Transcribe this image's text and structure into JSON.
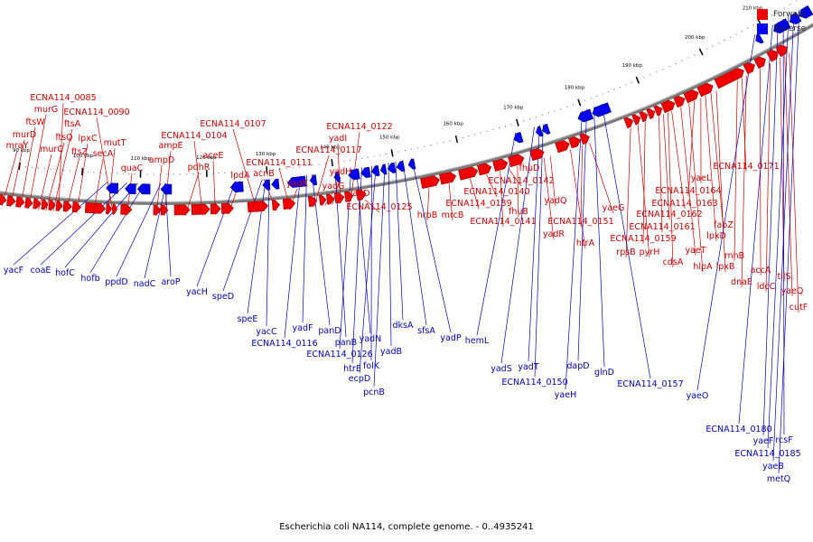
{
  "legend": [
    {
      "label": "Forward",
      "color": "#ee0000"
    },
    {
      "label": "Reverse",
      "color": "#0000ee"
    }
  ],
  "caption": "Escherichia coli NA114, complete genome. - 0..4935241",
  "colors": {
    "forward": "#ee0000",
    "reverse": "#0000ee",
    "backbone": "#7a7a7a",
    "label_forward": "#cc0000",
    "label_reverse": "#0000bb"
  },
  "ticks": [
    {
      "label": "90 kbp"
    },
    {
      "label": "100 kbp"
    },
    {
      "label": "110 kbp"
    },
    {
      "label": "120 kbp"
    },
    {
      "label": "130 kbp"
    },
    {
      "label": "140 kbp"
    },
    {
      "label": "150 kbp"
    },
    {
      "label": "160 kbp"
    },
    {
      "label": "170 kbp"
    },
    {
      "label": "180 kbp"
    },
    {
      "label": "190 kbp"
    },
    {
      "label": "200 kbp"
    },
    {
      "label": "210 kbp"
    }
  ],
  "forward_genes": [
    "mraY",
    "murD",
    "ftsW",
    "murG",
    "murC",
    "ftsQ",
    "ftsA",
    "ECNA114_0085",
    "ftsZ",
    "lpxC",
    "secA",
    "mutT",
    "ECNA114_0090",
    "quaC",
    "ampD",
    "ampE",
    "pdhR",
    "ECNA114_0104",
    "aceE",
    "lpdA",
    "ECNA114_0107",
    "acnB",
    "ECNA114_0111",
    "yadK",
    "ECNA114_0117",
    "yadG",
    "yadH",
    "yadI",
    "ECNA114_0122",
    "yadD",
    "ECNA114_0125",
    "hrpB",
    "mrcB",
    "ECNA114_0139",
    "ECNA114_0140",
    "ECNA114_0141",
    "fhuB",
    "ECNA114_0142",
    "fhuD",
    "yadR",
    "yadQ",
    "htrA",
    "ECNA114_0151",
    "yaeG",
    "rpsB",
    "pyrH",
    "ECNA114_0159",
    "cdsA",
    "ECNA114_0161",
    "ECNA114_0162",
    "ECNA114_0163",
    "yaeT",
    "hlpA",
    "ECNA114_0164",
    "lpxD",
    "fabZ",
    "yaeL",
    "lpxB",
    "rnhB",
    "ECNA114_0171",
    "dnaE",
    "accA",
    "ldcC",
    "tilS",
    "yaeQ",
    "cutF"
  ],
  "reverse_genes": [
    "yacF",
    "coaE",
    "hofC",
    "hofb",
    "ppdD",
    "nadC",
    "aroP",
    "yacH",
    "speD",
    "speE",
    "yacC",
    "ECNA114_0116",
    "yadF",
    "panD",
    "panB",
    "ECNA114_0126",
    "yadN",
    "htrE",
    "folK",
    "ecpD",
    "pcnB",
    "yadB",
    "dksA",
    "sfsA",
    "yadP",
    "hemL",
    "yadS",
    "yadT",
    "ECNA114_0150",
    "yaeH",
    "dapD",
    "glnD",
    "ECNA114_0157",
    "yaeO",
    "ECNA114_0180",
    "yaeF",
    "rcsF",
    "ECNA114_0185",
    "yaeB",
    "metQ"
  ]
}
